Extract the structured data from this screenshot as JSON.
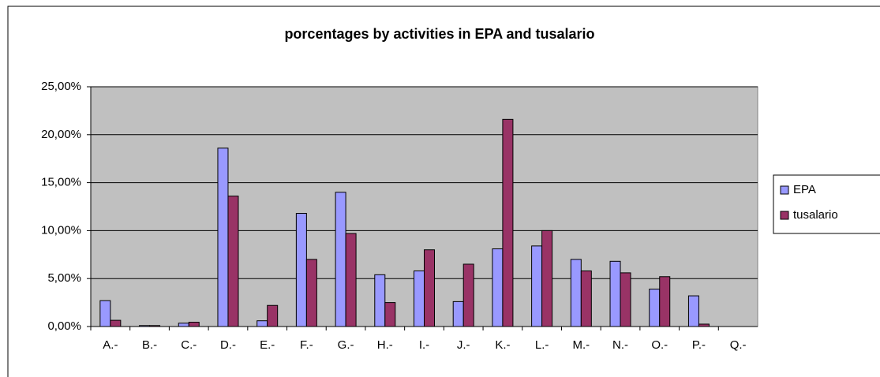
{
  "chart_data": {
    "type": "bar",
    "title": "porcentages by activities in EPA and tusalario",
    "categories": [
      "A.-",
      "B.-",
      "C.-",
      "D.-",
      "E.-",
      "F.-",
      "G.-",
      "H.-",
      "I.-",
      "J.-",
      "K.-",
      "L.-",
      "M.-",
      "N.-",
      "O.-",
      "P.-",
      "Q.-"
    ],
    "series": [
      {
        "name": "EPA",
        "color": "#9999ff",
        "values": [
          2.7,
          0.1,
          0.35,
          18.6,
          0.6,
          11.8,
          14.0,
          5.4,
          5.8,
          2.6,
          8.1,
          8.4,
          7.0,
          6.8,
          3.9,
          3.2,
          0
        ]
      },
      {
        "name": "tusalario",
        "color": "#993366",
        "values": [
          0.65,
          0.1,
          0.45,
          13.6,
          2.2,
          7.0,
          9.7,
          2.5,
          8.0,
          6.5,
          21.6,
          10.0,
          5.8,
          5.6,
          5.2,
          0.25,
          0
        ]
      }
    ],
    "ylim": [
      0,
      25
    ],
    "yticks": [
      {
        "value": 0,
        "label": "0,00%"
      },
      {
        "value": 5,
        "label": "5,00%"
      },
      {
        "value": 10,
        "label": "10,00%"
      },
      {
        "value": 15,
        "label": "15,00%"
      },
      {
        "value": 20,
        "label": "20,00%"
      },
      {
        "value": 25,
        "label": "25,00%"
      }
    ],
    "grid": true,
    "legend": "right"
  }
}
